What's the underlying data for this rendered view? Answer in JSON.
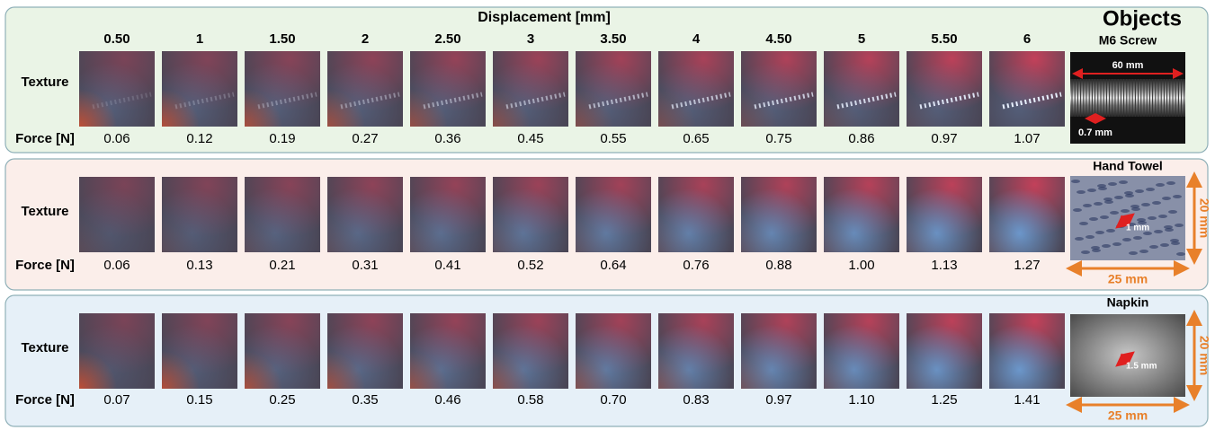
{
  "header": {
    "title": "Displacement [mm]",
    "displacements": [
      "0.50",
      "1",
      "1.50",
      "2",
      "2.50",
      "3",
      "3.50",
      "4",
      "4.50",
      "5",
      "5.50",
      "6"
    ]
  },
  "objects_title": "Objects",
  "panels": [
    {
      "object": "M6 Screw",
      "texture_label": "Texture",
      "force_label": "Force [N]",
      "forces": [
        "0.06",
        "0.12",
        "0.19",
        "0.27",
        "0.36",
        "0.45",
        "0.55",
        "0.65",
        "0.75",
        "0.86",
        "0.97",
        "1.07"
      ],
      "annotations": [
        "60 mm",
        "0.7 mm"
      ]
    },
    {
      "object": "Hand Towel",
      "texture_label": "Texture",
      "force_label": "Force [N]",
      "forces": [
        "0.06",
        "0.13",
        "0.21",
        "0.31",
        "0.41",
        "0.52",
        "0.64",
        "0.76",
        "0.88",
        "1.00",
        "1.13",
        "1.27"
      ],
      "annotations": [
        "1 mm",
        "20 mm",
        "25 mm"
      ]
    },
    {
      "object": "Napkin",
      "texture_label": "Texture",
      "force_label": "Force [N]",
      "forces": [
        "0.07",
        "0.15",
        "0.25",
        "0.35",
        "0.46",
        "0.58",
        "0.70",
        "0.83",
        "0.97",
        "1.10",
        "1.25",
        "1.41"
      ],
      "annotations": [
        "1.5 mm",
        "20 mm",
        "25 mm"
      ]
    }
  ]
}
